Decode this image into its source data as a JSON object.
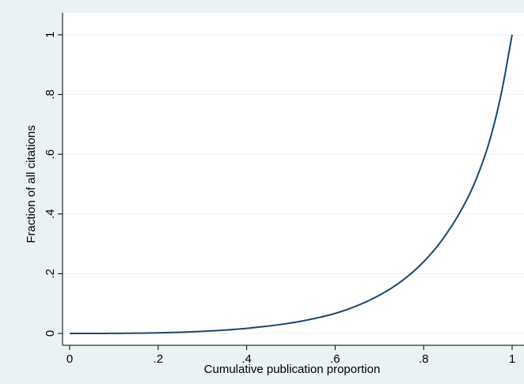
{
  "chart_data": {
    "type": "line",
    "title": "",
    "xlabel": "Cumulative publication proportion",
    "ylabel": "Fraction of all citations",
    "xlim": [
      0,
      1
    ],
    "ylim": [
      0,
      1
    ],
    "x_ticks": [
      0,
      0.2,
      0.4,
      0.6,
      0.8,
      1
    ],
    "x_tick_labels": [
      "0",
      ".2",
      ".4",
      ".6",
      ".8",
      "1"
    ],
    "y_ticks": [
      0,
      0.2,
      0.4,
      0.6,
      0.8,
      1
    ],
    "y_tick_labels": [
      "0",
      ".2",
      ".4",
      ".6",
      ".8",
      "1"
    ],
    "grid": "horizontal",
    "legend": "none",
    "colors": {
      "background": "#eaf2f3",
      "plot_area": "#ffffff",
      "line": "#1a476f",
      "grid": "#eaf2f3"
    },
    "series": [
      {
        "x": [
          0,
          0.1,
          0.2,
          0.3,
          0.4,
          0.5,
          0.55,
          0.6,
          0.65,
          0.7,
          0.75,
          0.8,
          0.85,
          0.9,
          0.925,
          0.95,
          0.975,
          1.0
        ],
        "y": [
          0,
          0.0003,
          0.002,
          0.007,
          0.017,
          0.035,
          0.049,
          0.067,
          0.093,
          0.128,
          0.175,
          0.24,
          0.33,
          0.455,
          0.54,
          0.65,
          0.8,
          1.0
        ]
      }
    ]
  }
}
